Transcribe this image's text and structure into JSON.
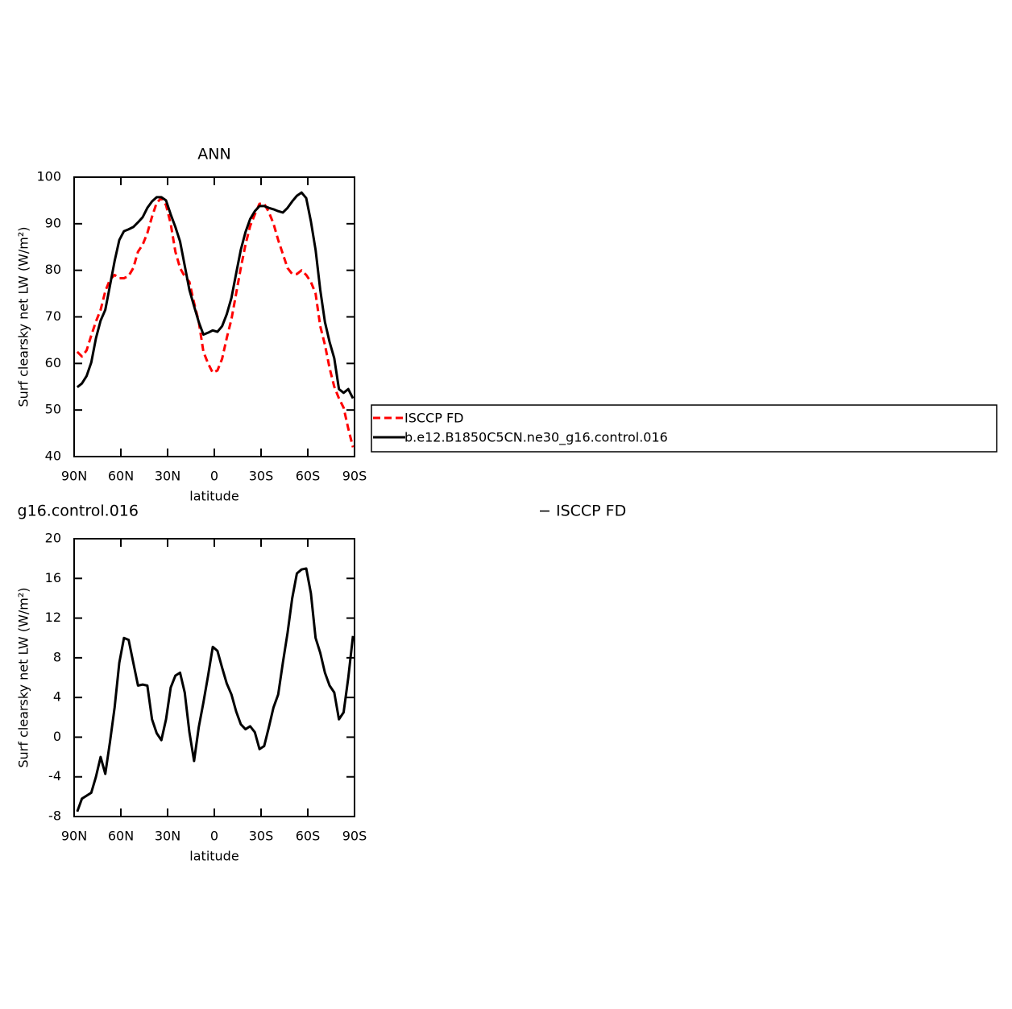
{
  "chart_data": [
    {
      "type": "line",
      "title": "ANN",
      "xlabel": "latitude",
      "ylabel": "Surf clearsky net LW (W/m²)",
      "x": [
        88,
        85,
        82,
        79,
        76,
        73,
        70,
        67,
        64,
        61,
        58,
        55,
        52,
        49,
        46,
        43,
        40,
        37,
        34,
        31,
        28,
        25,
        22,
        19,
        16,
        13,
        10,
        7,
        4,
        1,
        -2,
        -5,
        -8,
        -11,
        -14,
        -17,
        -20,
        -23,
        -26,
        -29,
        -32,
        -35,
        -38,
        -41,
        -44,
        -47,
        -50,
        -53,
        -56,
        -59,
        -62,
        -65,
        -68,
        -71,
        -74,
        -77,
        -80,
        -83,
        -86,
        -89
      ],
      "xlim": [
        90,
        -90
      ],
      "xticks": [
        {
          "value": 90,
          "label": "90N"
        },
        {
          "value": 60,
          "label": "60N"
        },
        {
          "value": 30,
          "label": "30N"
        },
        0,
        {
          "value": -30,
          "label": "30S"
        },
        {
          "value": -60,
          "label": "60S"
        },
        {
          "value": -90,
          "label": "90S"
        }
      ],
      "ylim": [
        40,
        100
      ],
      "yticks": [
        40,
        50,
        60,
        70,
        80,
        90,
        100
      ],
      "legend": "right",
      "series": [
        {
          "name": "ISCCP FD",
          "color": "#ff0000",
          "line_style": "dashed",
          "values": [
            62.5,
            61.5,
            62.8,
            66,
            69,
            71.5,
            75.5,
            78,
            79,
            78.3,
            78.3,
            78.8,
            80.5,
            84,
            85.5,
            88,
            91.5,
            94.5,
            95.5,
            94,
            90,
            84,
            80.5,
            78.7,
            77.5,
            73,
            69,
            62.5,
            60,
            58,
            58.5,
            61,
            65.5,
            69.5,
            75,
            80.5,
            85.5,
            89.5,
            92,
            94.3,
            94.3,
            92.5,
            90,
            86.5,
            83.5,
            80.5,
            79.2,
            79.2,
            80,
            79,
            77.5,
            75,
            68,
            64,
            59,
            55,
            52.5,
            50.5,
            46,
            42
          ]
        },
        {
          "name": "b.e12.B1850C5CN.ne30_g16.control.016",
          "color": "#000000",
          "line_style": "solid",
          "values": [
            54.9,
            55.7,
            57.3,
            60.2,
            65.4,
            69.2,
            71.5,
            76.7,
            82.0,
            86.5,
            88.4,
            88.8,
            89.3,
            90.3,
            91.4,
            93.4,
            94.8,
            95.7,
            95.7,
            95.0,
            92.0,
            89.3,
            86.2,
            81.0,
            75.8,
            72.3,
            68.9,
            66.2,
            66.6,
            67.1,
            66.8,
            68.0,
            70.6,
            74.1,
            79.3,
            84.4,
            88.2,
            91.0,
            92.7,
            93.8,
            93.8,
            93.4,
            93.1,
            92.7,
            92.4,
            93.4,
            94.8,
            96.0,
            96.7,
            95.5,
            90.5,
            84.4,
            75.8,
            68.9,
            64.6,
            61.1,
            54.5,
            53.7,
            54.5,
            52.5
          ]
        }
      ]
    },
    {
      "type": "line",
      "title": "g16.control.016",
      "right_title": "− ISCCP FD",
      "xlabel": "latitude",
      "ylabel": "Surf clearsky net LW (W/m²)",
      "x": [
        88,
        85,
        82,
        79,
        76,
        73,
        70,
        67,
        64,
        61,
        58,
        55,
        52,
        49,
        46,
        43,
        40,
        37,
        34,
        31,
        28,
        25,
        22,
        19,
        16,
        13,
        10,
        7,
        4,
        1,
        -2,
        -5,
        -8,
        -11,
        -14,
        -17,
        -20,
        -23,
        -26,
        -29,
        -32,
        -35,
        -38,
        -41,
        -44,
        -47,
        -50,
        -53,
        -56,
        -59,
        -62,
        -65,
        -68,
        -71,
        -74,
        -77,
        -80,
        -83,
        -86,
        -89
      ],
      "xlim": [
        90,
        -90
      ],
      "xticks": [
        {
          "value": 90,
          "label": "90N"
        },
        {
          "value": 60,
          "label": "60N"
        },
        {
          "value": 30,
          "label": "30N"
        },
        0,
        {
          "value": -30,
          "label": "30S"
        },
        {
          "value": -60,
          "label": "60S"
        },
        {
          "value": -90,
          "label": "90S"
        }
      ],
      "ylim": [
        -8,
        20
      ],
      "yticks": [
        -8,
        -4,
        0,
        4,
        8,
        12,
        16,
        20
      ],
      "series": [
        {
          "color": "#000000",
          "line_style": "solid",
          "values": [
            -7.5,
            -6.2,
            -5.9,
            -5.6,
            -4,
            -2,
            -3.7,
            -0.5,
            3,
            7.5,
            10,
            9.8,
            7.5,
            5.2,
            5.3,
            5.2,
            1.8,
            0.4,
            -0.3,
            1.8,
            5,
            6.2,
            6.5,
            4.5,
            0.5,
            -2.4,
            1,
            3.5,
            6.2,
            9.1,
            8.7,
            7,
            5.4,
            4.3,
            2.6,
            1.3,
            0.8,
            1.1,
            0.5,
            -1.2,
            -0.9,
            1,
            3,
            4.3,
            7.5,
            10.5,
            14,
            16.5,
            16.9,
            17,
            14.5,
            10,
            8.5,
            6.5,
            5.2,
            4.5,
            1.8,
            2.5,
            6,
            10.2
          ]
        }
      ]
    }
  ]
}
